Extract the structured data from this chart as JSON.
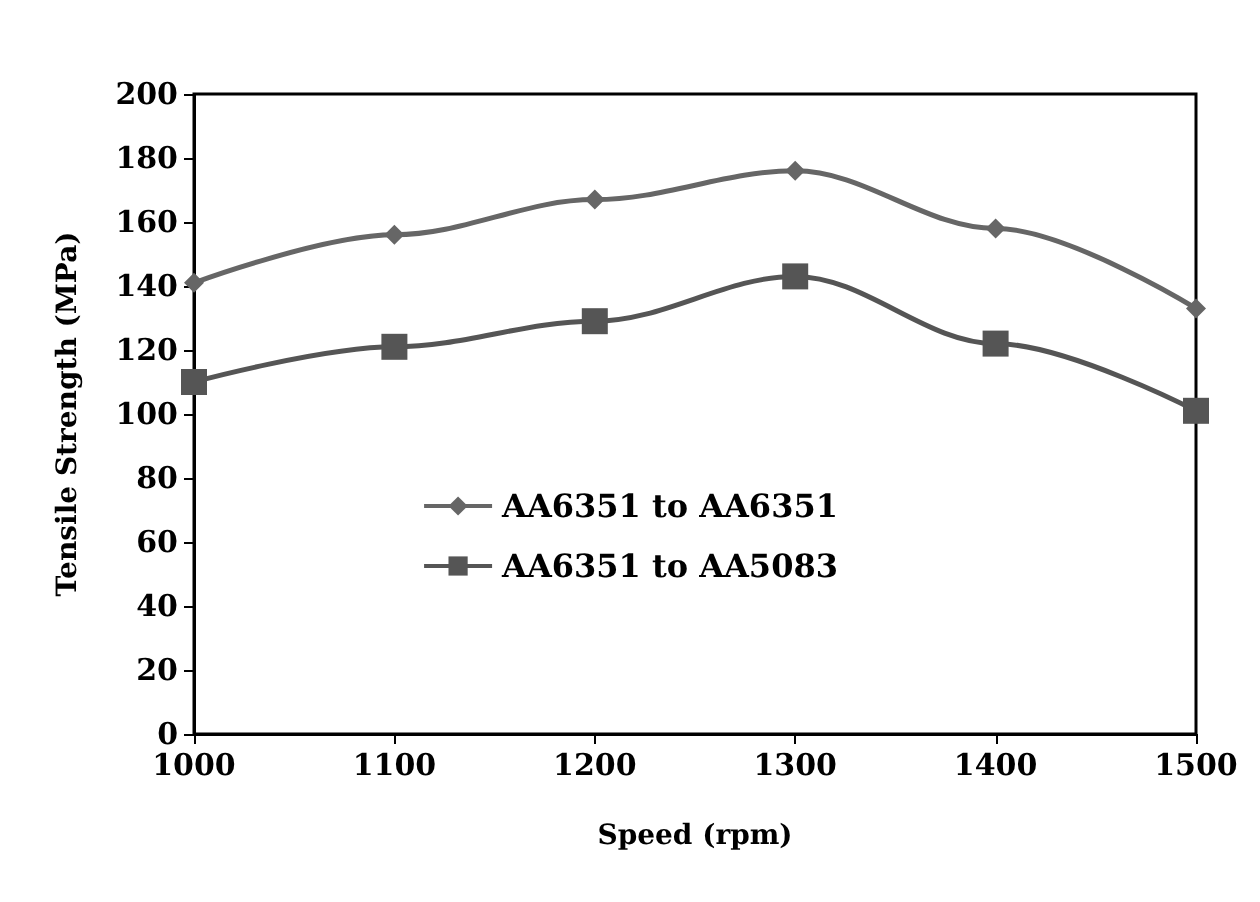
{
  "chart_data": {
    "type": "line",
    "xlabel": "Speed (rpm)",
    "ylabel": "Tensile Strength (MPa)",
    "x": [
      1000,
      1100,
      1200,
      1300,
      1400,
      1500
    ],
    "series": [
      {
        "name": "AA6351 to AA6351",
        "color": "#666666",
        "marker": "diamond",
        "values": [
          141,
          156,
          167,
          176,
          158,
          133
        ]
      },
      {
        "name": "AA6351 to AA5083",
        "color": "#555555",
        "marker": "square",
        "values": [
          110,
          121,
          129,
          143,
          122,
          101
        ]
      }
    ],
    "xlim": [
      1000,
      1500
    ],
    "xticks": [
      1000,
      1100,
      1200,
      1300,
      1400,
      1500
    ],
    "ylim": [
      0,
      200
    ],
    "yticks": [
      0,
      20,
      40,
      60,
      80,
      100,
      120,
      140,
      160,
      180,
      200
    ],
    "grid": false,
    "legend": "center"
  }
}
